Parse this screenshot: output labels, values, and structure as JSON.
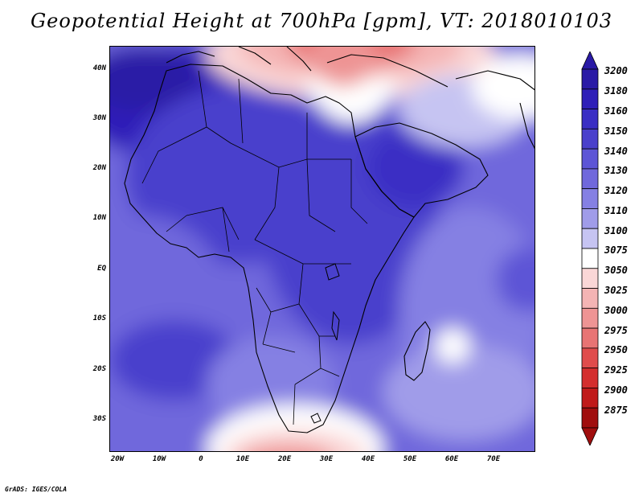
{
  "title": "Geopotential Height at 700hPa [gpm], VT: 2018010103",
  "map": {
    "lat_labels": [
      "40N",
      "30N",
      "20N",
      "10N",
      "EQ",
      "10S",
      "20S",
      "30S"
    ],
    "lon_labels": [
      "20W",
      "10W",
      "0",
      "10E",
      "20E",
      "30E",
      "40E",
      "50E",
      "60E",
      "70E"
    ]
  },
  "colorbar": {
    "levels": [
      "3200",
      "3180",
      "3160",
      "3150",
      "3140",
      "3130",
      "3120",
      "3110",
      "3100",
      "3075",
      "3050",
      "3025",
      "3000",
      "2975",
      "2950",
      "2925",
      "2900",
      "2875"
    ],
    "colors": [
      "#2a1aa6",
      "#2f1fb8",
      "#3a2ec4",
      "#4a40cc",
      "#5d55d6",
      "#7068dc",
      "#8580e3",
      "#a09ce9",
      "#c6c4f2",
      "#ffffff",
      "#fad7d7",
      "#f4b4b4",
      "#ee9494",
      "#e87474",
      "#e04c4c",
      "#d42e2e",
      "#c01a1a",
      "#a00e0e"
    ]
  },
  "footer": "GrADS: IGES/COLA"
}
